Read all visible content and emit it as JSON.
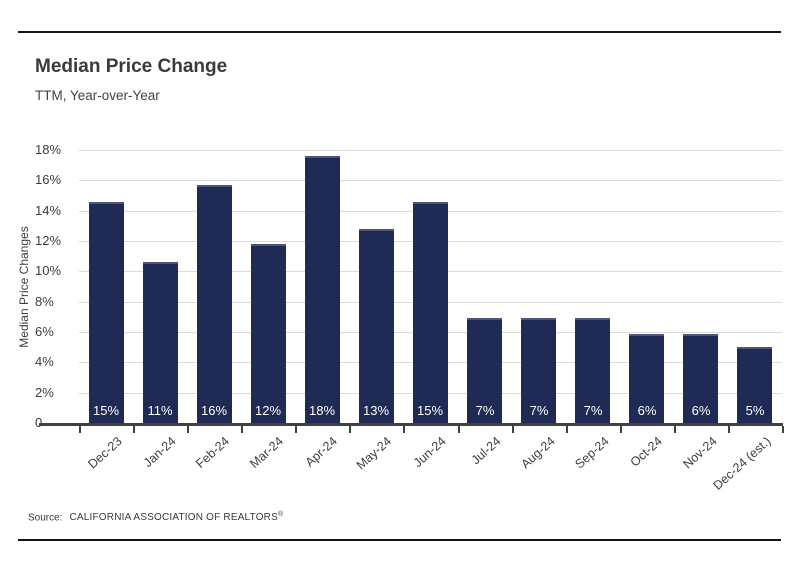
{
  "page": {
    "title": "Median Price Change",
    "subtitle": "TTM, Year-over-Year",
    "source_label": "Source:",
    "source_text": "CALIFORNIA ASSOCIATION OF REALTORS",
    "source_reg": "®"
  },
  "colors": {
    "bar": "#1F2A55",
    "bar_top_edge": "#4D5679",
    "gridline": "#DCDCDC",
    "axis": "#404040",
    "text": "#3D3D3D",
    "rule": "#151515",
    "bar_label": "#FFFFFF"
  },
  "chart_data": {
    "type": "bar",
    "title": "Median Price Change",
    "subtitle": "TTM, Year-over-Year",
    "xlabel": "",
    "ylabel": "Median Price Changes",
    "ylim": [
      0,
      18
    ],
    "ytick_step": 2,
    "ytick_suffix": "%",
    "grid": true,
    "legend": false,
    "categories": [
      "Dec-23",
      "Jan-24",
      "Feb-24",
      "Mar-24",
      "Apr-24",
      "May-24",
      "Jun-24",
      "Jul-24",
      "Aug-24",
      "Sep-24",
      "Oct-24",
      "Nov-24",
      "Dec-24 (est.)"
    ],
    "values": [
      14.6,
      10.6,
      15.7,
      11.8,
      17.6,
      12.8,
      14.6,
      6.9,
      6.9,
      6.9,
      5.9,
      5.9,
      5.0
    ],
    "bar_labels": [
      "15%",
      "11%",
      "16%",
      "12%",
      "18%",
      "13%",
      "15%",
      "7%",
      "7%",
      "7%",
      "6%",
      "6%",
      "5%"
    ]
  }
}
